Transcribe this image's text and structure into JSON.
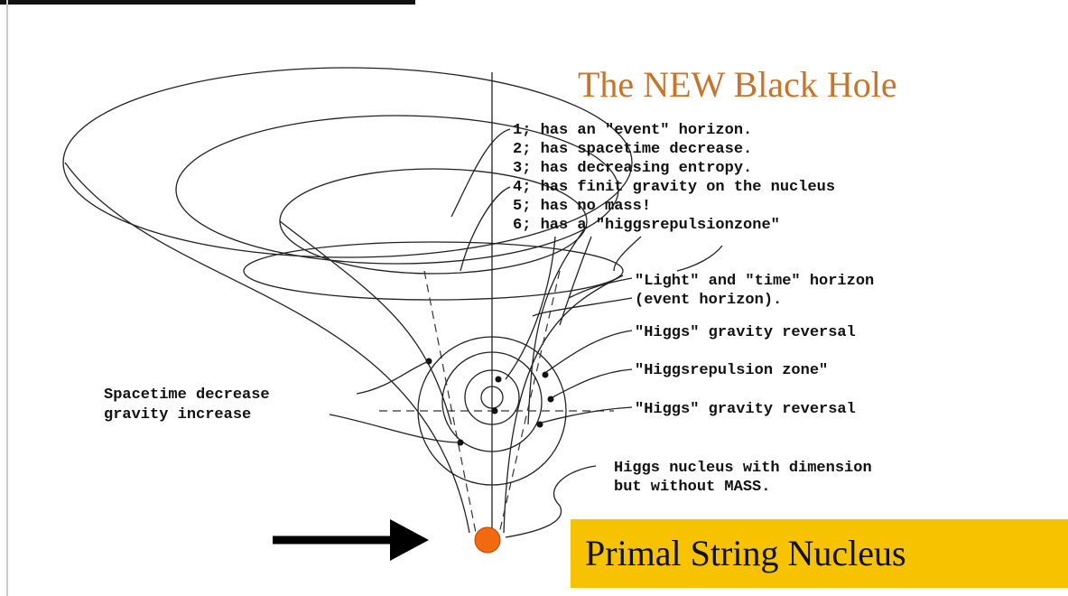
{
  "title": "The NEW Black Hole",
  "properties": [
    "1; has an \"event\" horizon.",
    "2; has spacetime decrease.",
    "3; has decreasing entropy.",
    "4; has finit gravity on the nucleus",
    "5; has no mass!",
    "6; has a \"higgsrepulsionzone\""
  ],
  "labels": {
    "light_horizon": [
      "\"Light\" and \"time\" horizon",
      "(event horizon)."
    ],
    "gravity_reversal_top": "\"Higgs\" gravity reversal",
    "repulsion_zone": "\"Higgsrepulsion zone\"",
    "gravity_reversal_bottom": "\"Higgs\" gravity reversal",
    "nucleus": [
      "Higgs nucleus with dimension",
      "but without MASS."
    ],
    "spacetime": [
      "Spacetime decrease",
      "gravity increase"
    ]
  },
  "footer": "Primal String Nucleus"
}
